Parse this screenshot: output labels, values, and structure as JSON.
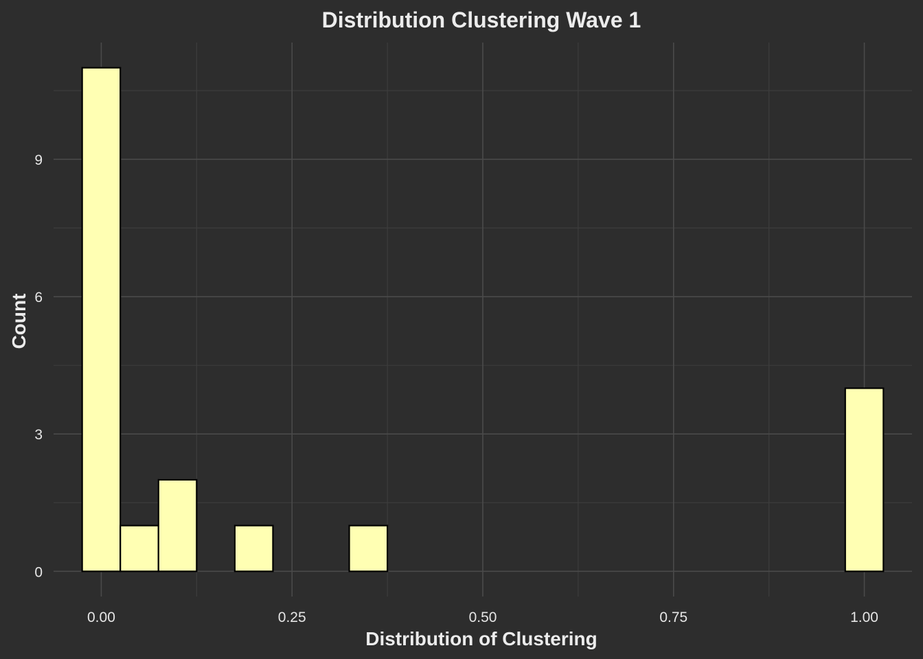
{
  "chart_data": {
    "type": "bar",
    "title": "Distribution Clustering Wave 1",
    "xlabel": "Distribution of Clustering",
    "ylabel": "Count",
    "bin_width": 0.05,
    "bins": [
      {
        "x": 0.0,
        "count": 11
      },
      {
        "x": 0.05,
        "count": 1
      },
      {
        "x": 0.1,
        "count": 2
      },
      {
        "x": 0.15,
        "count": 0
      },
      {
        "x": 0.2,
        "count": 1
      },
      {
        "x": 0.25,
        "count": 0
      },
      {
        "x": 0.3,
        "count": 0
      },
      {
        "x": 0.35,
        "count": 1
      },
      {
        "x": 0.4,
        "count": 0
      },
      {
        "x": 0.45,
        "count": 0
      },
      {
        "x": 0.5,
        "count": 0
      },
      {
        "x": 0.55,
        "count": 0
      },
      {
        "x": 0.6,
        "count": 0
      },
      {
        "x": 0.65,
        "count": 0
      },
      {
        "x": 0.7,
        "count": 0
      },
      {
        "x": 0.75,
        "count": 0
      },
      {
        "x": 0.8,
        "count": 0
      },
      {
        "x": 0.85,
        "count": 0
      },
      {
        "x": 0.9,
        "count": 0
      },
      {
        "x": 0.95,
        "count": 0
      },
      {
        "x": 1.0,
        "count": 4
      }
    ],
    "x_ticks": [
      {
        "value": 0.0,
        "label": "0.00"
      },
      {
        "value": 0.25,
        "label": "0.25"
      },
      {
        "value": 0.5,
        "label": "0.50"
      },
      {
        "value": 0.75,
        "label": "0.75"
      },
      {
        "value": 1.0,
        "label": "1.00"
      }
    ],
    "y_ticks": [
      {
        "value": 0,
        "label": "0"
      },
      {
        "value": 3,
        "label": "3"
      },
      {
        "value": 6,
        "label": "6"
      },
      {
        "value": 9,
        "label": "9"
      }
    ],
    "xlim": [
      -0.0625,
      1.0625
    ],
    "ylim": [
      -0.55,
      11.55
    ],
    "grid": true,
    "bar_fill": "#ffffb3",
    "bar_outline": "#000000",
    "background": "#2d2d2d",
    "grid_major_color": "#4a4a4a",
    "grid_minor_color": "#3d3d3d"
  }
}
